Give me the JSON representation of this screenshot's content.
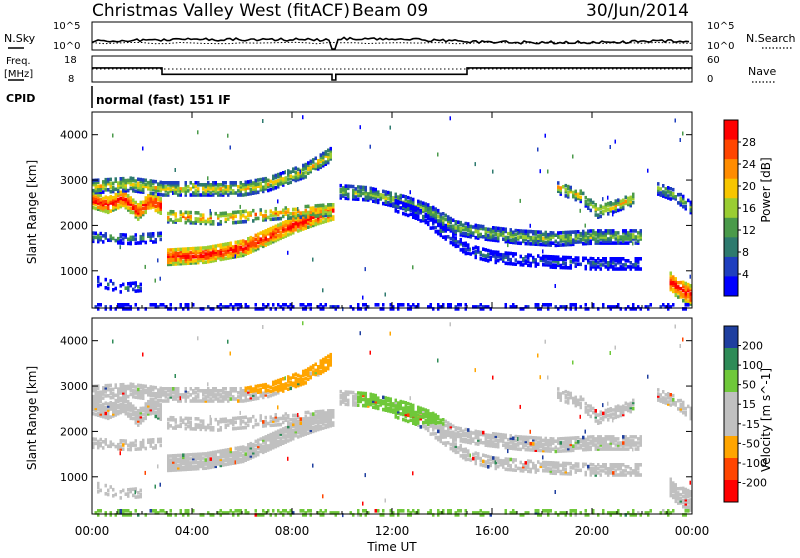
{
  "header": {
    "station": "Christmas Valley West (fitACF)",
    "beam": "Beam 09",
    "date": "30/Jun/2014"
  },
  "noise_panel": {
    "left_label": "N.Sky",
    "right_label": "N.Search",
    "left_ticks": [
      "10^5",
      "10^0"
    ],
    "right_ticks": [
      "10^5",
      "10^0"
    ]
  },
  "freq_panel": {
    "left_label_1": "Freq.",
    "left_label_2": "[MHz]",
    "left_ticks": [
      "18",
      "8"
    ],
    "right_label": "Nave",
    "right_ticks": [
      "60",
      "0"
    ]
  },
  "cpid": {
    "label": "CPID",
    "value": "normal (fast) 151 IF"
  },
  "colors": {
    "power": [
      "#0000ff",
      "#1f3fbf",
      "#2e7a6e",
      "#4a9a4a",
      "#9acd32",
      "#f7c600",
      "#ff8c00",
      "#ff4500",
      "#ff0000"
    ],
    "velocity": [
      "#ff0000",
      "#ff4500",
      "#ffa500",
      "#c0c0c0",
      "#c0c0c0",
      "#6fc83a",
      "#2e8b57",
      "#1f3f9f"
    ]
  },
  "chart_data": [
    {
      "type": "heatmap",
      "name": "power",
      "ylabel": "Slant Range [km]",
      "yticks": [
        "1000",
        "2000",
        "3000",
        "4000"
      ],
      "ylim": [
        180,
        4500
      ],
      "colorbar_label": "Power [dB]",
      "colorbar_ticks": [
        "4",
        "8",
        "12",
        "16",
        "20",
        "24",
        "28"
      ],
      "colorbar_range": [
        0,
        32
      ]
    },
    {
      "type": "heatmap",
      "name": "velocity",
      "ylabel": "Slant Range [km]",
      "yticks": [
        "1000",
        "2000",
        "3000",
        "4000"
      ],
      "ylim": [
        180,
        4500
      ],
      "colorbar_label": "Velocity [m s^-1]",
      "colorbar_ticks": [
        "200",
        "100",
        "50",
        "15",
        "-15",
        "-50",
        "-100",
        "-200"
      ],
      "xlabel": "Time UT",
      "xticks": [
        "00:00",
        "04:00",
        "08:00",
        "12:00",
        "16:00",
        "20:00",
        "00:00"
      ],
      "xlim_hours": [
        0,
        24
      ]
    }
  ],
  "freq_series": {
    "hours": [
      0,
      2.8,
      2.8,
      9.6,
      9.6,
      9.75,
      9.75,
      15.0,
      15.0,
      24
    ],
    "mhz": [
      13.5,
      13.5,
      10.6,
      10.6,
      8.0,
      8.0,
      10.6,
      10.6,
      13.5,
      13.5
    ]
  }
}
